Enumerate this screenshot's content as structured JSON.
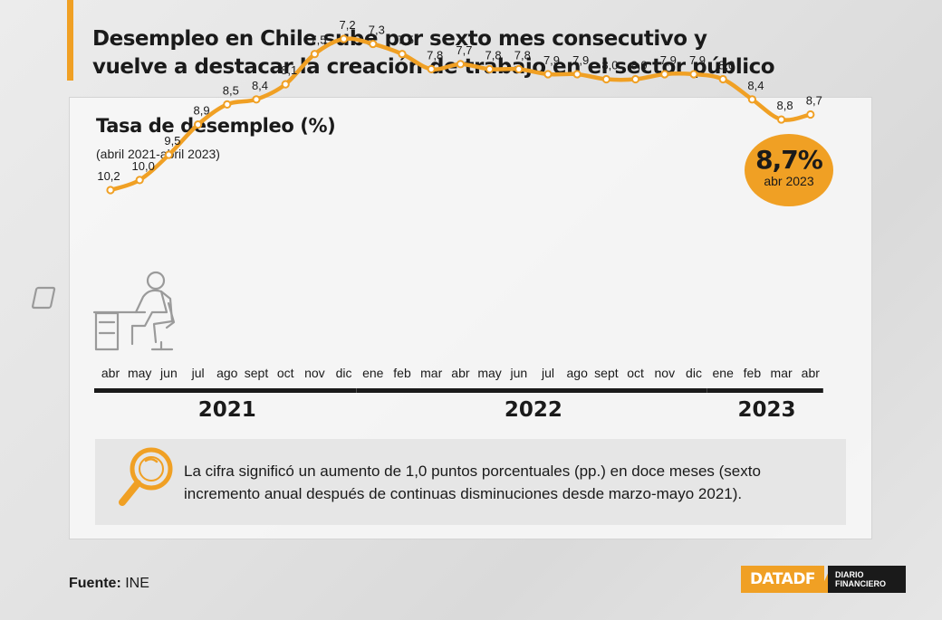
{
  "header": {
    "title_line1": "Desempleo en Chile sube por sexto mes consecutivo y",
    "title_line2": "vuelve a destacar la creación de trabajo en el sector público"
  },
  "badge": {
    "value": "8,7%",
    "label": "abr 2023"
  },
  "chart_data": {
    "type": "line",
    "title": "Tasa de desempleo (%)",
    "subtitle": "(abril 2021-abril 2023)",
    "categories": [
      "abr",
      "may",
      "jun",
      "jul",
      "ago",
      "sept",
      "oct",
      "nov",
      "dic",
      "ene",
      "feb",
      "mar",
      "abr",
      "may",
      "jun",
      "jul",
      "ago",
      "sept",
      "oct",
      "nov",
      "dic",
      "ene",
      "feb",
      "mar",
      "abr"
    ],
    "values": [
      10.2,
      10.0,
      9.5,
      8.9,
      8.5,
      8.4,
      8.1,
      7.5,
      7.2,
      7.3,
      7.5,
      7.8,
      7.7,
      7.8,
      7.8,
      7.9,
      7.9,
      8.0,
      8.0,
      7.9,
      7.9,
      8.0,
      8.4,
      8.8,
      8.7
    ],
    "data_labels": [
      "10,2",
      "10,0",
      "9,5",
      "8,9",
      "8,5",
      "8,4",
      "8,1",
      "7,5",
      "7,2",
      "7,3",
      "7,5",
      "7,8",
      "7,7",
      "7,8",
      "7,8",
      "7,9",
      "7,9",
      "8,0",
      "8,0",
      "7,9",
      "7,9",
      "8,0",
      "8,4",
      "8,8",
      "8,7"
    ],
    "years": [
      {
        "label": "2021",
        "from": 0,
        "to": 8
      },
      {
        "label": "2022",
        "from": 9,
        "to": 20
      },
      {
        "label": "2023",
        "from": 21,
        "to": 24
      }
    ],
    "line_color": "#f0a024",
    "grid": false
  },
  "note": {
    "icon": "magnifier-icon",
    "text": "La cifra significó un aumento de 1,0 puntos porcentuales (pp.) en doce meses (sexto incremento anual después de continuas disminuciones desde marzo-mayo 2021)."
  },
  "footer": {
    "source_label": "Fuente:",
    "source_value": "INE",
    "logo_data": "DATADF",
    "logo_brand_line1": "DIARIO",
    "logo_brand_line2": "FINANCIERO"
  },
  "colors": {
    "accent": "#f0a024",
    "text": "#1a1a1a"
  }
}
